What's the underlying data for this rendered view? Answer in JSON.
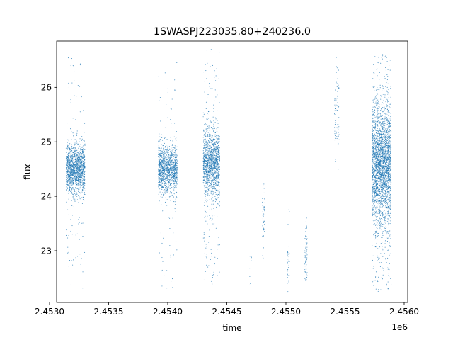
{
  "chart_data": {
    "type": "scatter",
    "title": "1SWASPJ223035.80+240236.0",
    "xlabel": "time",
    "ylabel": "flux",
    "x_offset_label": "1e6",
    "xlim": [
      2.45306,
      2.45603
    ],
    "ylim": [
      22.05,
      26.85
    ],
    "x_ticks": [
      2.453,
      2.4535,
      2.454,
      2.4545,
      2.455,
      2.4555,
      2.456
    ],
    "x_tick_labels": [
      "2.4530",
      "2.4535",
      "2.4540",
      "2.4545",
      "2.4550",
      "2.4555",
      "2.4560"
    ],
    "y_ticks": [
      23,
      24,
      25,
      26
    ],
    "y_tick_labels": [
      "23",
      "24",
      "25",
      "26"
    ],
    "grid": false,
    "marker_color": "#1f77b4",
    "clusters": [
      {
        "x_center": 2.45322,
        "x_halfwidth": 8e-05,
        "y_mean": 24.5,
        "y_core_sd": 0.22,
        "y_range": [
          22.3,
          26.55
        ],
        "n_core": 1400,
        "n_outlier": 110
      },
      {
        "x_center": 2.454,
        "x_halfwidth": 8e-05,
        "y_mean": 24.5,
        "y_core_sd": 0.22,
        "y_range": [
          22.25,
          26.5
        ],
        "n_core": 1200,
        "n_outlier": 90
      },
      {
        "x_center": 2.45437,
        "x_halfwidth": 7e-05,
        "y_mean": 24.6,
        "y_core_sd": 0.32,
        "y_range": [
          22.3,
          26.7
        ],
        "n_core": 1300,
        "n_outlier": 160
      },
      {
        "x_center": 2.4547,
        "x_halfwidth": 1e-05,
        "y_mean": 22.85,
        "y_core_sd": 0.05,
        "y_range": [
          22.35,
          22.9
        ],
        "n_core": 8,
        "n_outlier": 3
      },
      {
        "x_center": 2.45481,
        "x_halfwidth": 1e-05,
        "y_mean": 23.6,
        "y_core_sd": 0.3,
        "y_range": [
          22.3,
          24.4
        ],
        "n_core": 40,
        "n_outlier": 5
      },
      {
        "x_center": 2.45502,
        "x_halfwidth": 1e-05,
        "y_mean": 22.7,
        "y_core_sd": 0.2,
        "y_range": [
          22.25,
          23.8
        ],
        "n_core": 35,
        "n_outlier": 4
      },
      {
        "x_center": 2.45517,
        "x_halfwidth": 1e-05,
        "y_mean": 22.95,
        "y_core_sd": 0.25,
        "y_range": [
          22.45,
          23.6
        ],
        "n_core": 70,
        "n_outlier": 4
      },
      {
        "x_center": 2.45543,
        "x_halfwidth": 2e-05,
        "y_mean": 25.6,
        "y_core_sd": 0.4,
        "y_range": [
          24.5,
          26.55
        ],
        "n_core": 80,
        "n_outlier": 4
      },
      {
        "x_center": 2.45581,
        "x_halfwidth": 8e-05,
        "y_mean": 24.6,
        "y_core_sd": 0.55,
        "y_range": [
          22.25,
          26.65
        ],
        "n_core": 2600,
        "n_outlier": 300
      }
    ]
  }
}
